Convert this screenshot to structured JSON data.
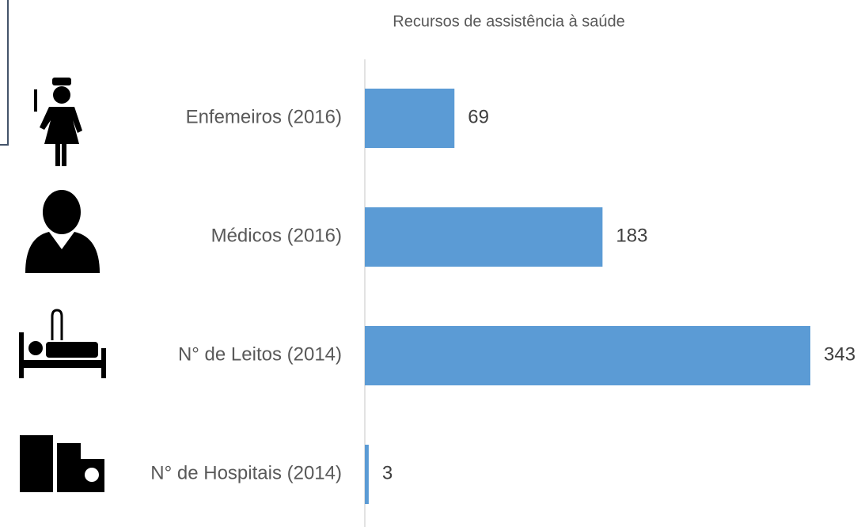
{
  "chart_data": {
    "type": "bar",
    "orientation": "horizontal",
    "title": "Recursos de assistência à saúde",
    "categories": [
      "Enfemeiros (2016)",
      "Médicos (2016)",
      "N° de Leitos (2014)",
      "N° de Hospitais (2014)"
    ],
    "values": [
      69,
      183,
      343,
      3
    ],
    "color": "#5b9bd5"
  }
}
